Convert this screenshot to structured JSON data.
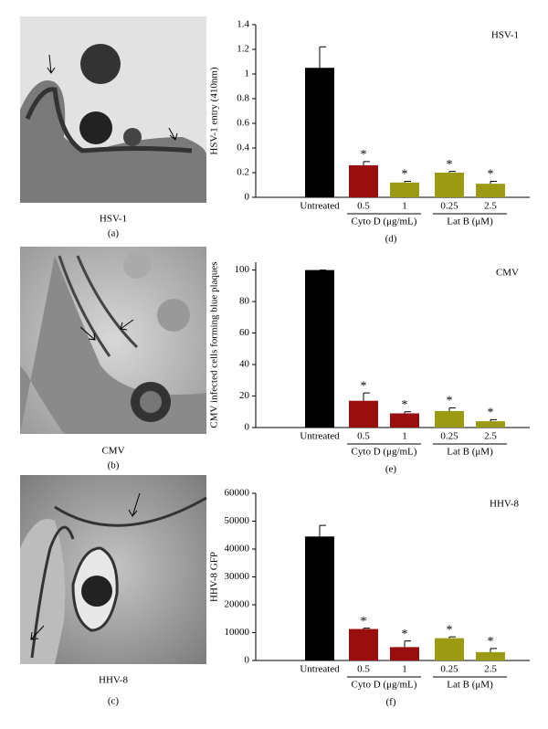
{
  "panels": [
    {
      "caption": "HSV-1",
      "letter": "(a)"
    },
    {
      "caption": "CMV",
      "letter": "(b)"
    },
    {
      "caption": "HHV-8",
      "letter": "(c)"
    }
  ],
  "chart_data": [
    {
      "type": "bar",
      "annotation": "HSV-1",
      "ylabel": "HSV-1 entry (410nm)",
      "letter": "(d)",
      "categories": [
        "Untreated",
        "0.5",
        "1",
        "0.25",
        "2.5"
      ],
      "groups": [
        "Cyto D (μg/mL)",
        "Lat B (μM)"
      ],
      "values": [
        1.05,
        0.26,
        0.12,
        0.2,
        0.11
      ],
      "errors": [
        0.17,
        0.03,
        0.01,
        0.01,
        0.02
      ],
      "markers": [
        null,
        "*",
        "*",
        "*",
        "*"
      ],
      "colors": [
        "#000000",
        "#990f0f",
        "#9a9a14",
        "#9a9a14",
        "#9a9a14"
      ],
      "ylim": [
        0,
        1.4
      ],
      "yticks": [
        0,
        0.2,
        0.4,
        0.6,
        0.8,
        1,
        1.2,
        1.4
      ]
    },
    {
      "type": "bar",
      "annotation": "CMV",
      "ylabel": "CMV infected cells forming blue plaques",
      "letter": "(e)",
      "categories": [
        "Untreated",
        "0.5",
        "1",
        "0.25",
        "2.5"
      ],
      "groups": [
        "Cyto D (μg/mL)",
        "Lat B (μM)"
      ],
      "values": [
        100,
        17,
        9,
        10.5,
        4
      ],
      "errors": [
        0,
        5,
        1,
        2,
        1
      ],
      "markers": [
        null,
        "*",
        "*",
        "*",
        "*"
      ],
      "colors": [
        "#000000",
        "#990f0f",
        "#990f0f",
        "#9a9a14",
        "#9a9a14"
      ],
      "ylim": [
        0,
        105
      ],
      "yticks": [
        0,
        20,
        40,
        60,
        80,
        100
      ]
    },
    {
      "type": "bar",
      "annotation": "HHV-8",
      "ylabel": "HHV-8 GFP",
      "letter": "(f)",
      "categories": [
        "Untreated",
        "0.5",
        "1",
        "0.25",
        "2.5"
      ],
      "groups": [
        "Cyto D (μg/mL)",
        "Lat B (μM)"
      ],
      "values": [
        44500,
        11300,
        4800,
        8000,
        3000
      ],
      "errors": [
        4000,
        300,
        2200,
        500,
        1300
      ],
      "markers": [
        null,
        "*",
        "*",
        "*",
        "*"
      ],
      "colors": [
        "#000000",
        "#990f0f",
        "#990f0f",
        "#9a9a14",
        "#9a9a14"
      ],
      "ylim": [
        0,
        60000
      ],
      "yticks": [
        0,
        10000,
        20000,
        30000,
        40000,
        50000,
        60000
      ]
    }
  ]
}
